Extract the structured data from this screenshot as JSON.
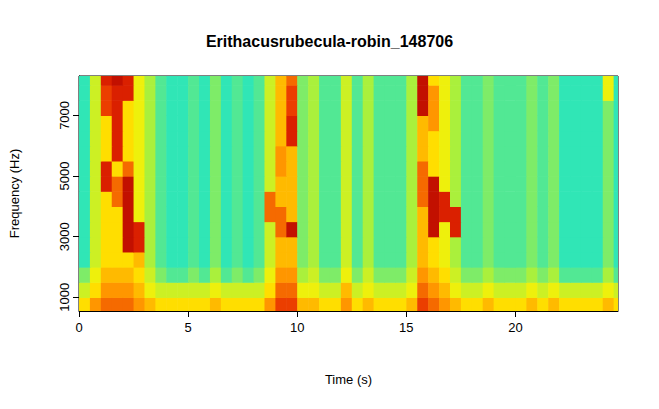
{
  "chart_data": {
    "type": "heatmap",
    "title": "Erithacusrubecula-robin_148706",
    "x_label": "Time (s)",
    "y_label": "Frequency (Hz)",
    "xlim": [
      0,
      24.7
    ],
    "ylim": [
      550,
      8300
    ],
    "xticks": [
      0,
      5,
      10,
      15,
      20
    ],
    "yticks": [
      1000,
      3000,
      5000,
      7000
    ],
    "grid": false,
    "x_edges": [
      0,
      0.5,
      1,
      1.5,
      2,
      2.5,
      3,
      3.5,
      4,
      4.5,
      5,
      5.5,
      6,
      6.5,
      7,
      7.5,
      8,
      8.5,
      9,
      9.5,
      10,
      10.5,
      11,
      11.5,
      12,
      12.5,
      13,
      13.5,
      14,
      14.5,
      15,
      15.5,
      16,
      16.5,
      17,
      17.5,
      18,
      18.5,
      19,
      19.5,
      20,
      20.5,
      21,
      21.5,
      22,
      22.5,
      23,
      23.5,
      24,
      24.5,
      24.7
    ],
    "y_edges": [
      550,
      1000,
      1500,
      2000,
      2500,
      3000,
      3500,
      4000,
      4500,
      5000,
      5500,
      6000,
      6500,
      7000,
      7500,
      8000,
      8300
    ],
    "color_range": [
      0,
      10
    ],
    "cells": [
      [
        6.5,
        7.5,
        8,
        8,
        8,
        7.5,
        7,
        6.5,
        6.5,
        6.5,
        6.5,
        6.5,
        7,
        6.5,
        6.5,
        6.5,
        6.5,
        7.5,
        8.5,
        8.5,
        7,
        7,
        6.5,
        6.5,
        7.5,
        6.5,
        7,
        6.5,
        6.5,
        6.5,
        7,
        8.5,
        8,
        7.5,
        7,
        6.5,
        6.5,
        7,
        6.5,
        6.5,
        6.5,
        7,
        6.5,
        7,
        6.5,
        6.5,
        6.5,
        6.5,
        7,
        6.5
      ],
      [
        5.5,
        6.5,
        7.5,
        7.5,
        7.5,
        7,
        6,
        5.5,
        5.5,
        5.5,
        5.5,
        5.5,
        6,
        5.5,
        5.5,
        5.5,
        5.5,
        6.5,
        8,
        8,
        6,
        6,
        5.5,
        5.5,
        7,
        5.5,
        6,
        5.5,
        5.5,
        5.5,
        6,
        8,
        7.5,
        7,
        6,
        5.5,
        5.5,
        6,
        5.5,
        5.5,
        5.5,
        6,
        5.5,
        6,
        5.5,
        5.5,
        5.5,
        5.5,
        6,
        5.5
      ],
      [
        4.5,
        6,
        7,
        7,
        7,
        6.5,
        5.5,
        4.5,
        4,
        4,
        4.5,
        4,
        5,
        4,
        4.5,
        4,
        4.5,
        6,
        7.5,
        7.5,
        5,
        5.5,
        4.5,
        4.5,
        6,
        4.5,
        5.5,
        4.5,
        4.5,
        4.5,
        5.5,
        7.5,
        7,
        6.5,
        5.5,
        4.5,
        4.5,
        5,
        4.5,
        4.5,
        4.5,
        5,
        4.5,
        5,
        4,
        4,
        4,
        4,
        5,
        4
      ],
      [
        3.5,
        5.5,
        6.5,
        6.5,
        6.5,
        7,
        5,
        4,
        3.5,
        3.5,
        4,
        3.5,
        4.5,
        3.5,
        4,
        3.5,
        4,
        5.5,
        7,
        7,
        4.5,
        5,
        4,
        4,
        5.5,
        4,
        5,
        4,
        4,
        4,
        5,
        7,
        6.5,
        6,
        5,
        4,
        4,
        4.5,
        4,
        4,
        4,
        4.5,
        4,
        4.5,
        3.5,
        3.5,
        3.5,
        3.5,
        4.5,
        3.5
      ],
      [
        3.5,
        5.5,
        6.5,
        6.5,
        9.5,
        9,
        5,
        4,
        3.5,
        3.5,
        4,
        3.5,
        4.5,
        3.5,
        4,
        3.5,
        4,
        5.5,
        7,
        7,
        4.5,
        5,
        4,
        4,
        5.5,
        4,
        5,
        4,
        4,
        4,
        5,
        7,
        6.5,
        6,
        5,
        4,
        4,
        4.5,
        4,
        4,
        4,
        4.5,
        4,
        4.5,
        3.5,
        3.5,
        3.5,
        3.5,
        4.5,
        3.5
      ],
      [
        3.5,
        5.5,
        6.5,
        6.5,
        9.5,
        9,
        5,
        4,
        3.5,
        3.5,
        4,
        3.5,
        4.5,
        3.5,
        4,
        3.5,
        4,
        5.5,
        8,
        9.5,
        4.5,
        5,
        4,
        4,
        5.5,
        4,
        5,
        4,
        4,
        4,
        5,
        7,
        9.5,
        6,
        9,
        4,
        4,
        4.5,
        4,
        4,
        4,
        4.5,
        4,
        4.5,
        3.5,
        3.5,
        3.5,
        3.5,
        4.5,
        3.5
      ],
      [
        3.5,
        5.5,
        6.5,
        6.5,
        9.5,
        6,
        5,
        4,
        3.5,
        3.5,
        4,
        3.5,
        4.5,
        3.5,
        4,
        3.5,
        4,
        8,
        8,
        7,
        4.5,
        5,
        4,
        4,
        5.5,
        4,
        5,
        4,
        4,
        4,
        5,
        7,
        9.5,
        9,
        9,
        4,
        4,
        4.5,
        4,
        4,
        4,
        4.5,
        4,
        4.5,
        3.5,
        3.5,
        3.5,
        3.5,
        4.5,
        3.5
      ],
      [
        3.5,
        5.5,
        6.5,
        8,
        9.5,
        6,
        5,
        4,
        3.5,
        3.5,
        4,
        3.5,
        4.5,
        3.5,
        4,
        3.5,
        4,
        8,
        7,
        7,
        4.5,
        5,
        4,
        4,
        5.5,
        4,
        5,
        4,
        4,
        4,
        5,
        8,
        9.5,
        9,
        5,
        4,
        4,
        4.5,
        4,
        4,
        4,
        4.5,
        4,
        4.5,
        3.5,
        3.5,
        3.5,
        3.5,
        4.5,
        3.5
      ],
      [
        3.5,
        5.5,
        9,
        8,
        9.5,
        6,
        5,
        4,
        3.5,
        3.5,
        4,
        3.5,
        4.5,
        3.5,
        4,
        3.5,
        4,
        5.5,
        7,
        7,
        4.5,
        5,
        4,
        4,
        5.5,
        4,
        5,
        4,
        4,
        4,
        5,
        8,
        9.5,
        6,
        5,
        4,
        4,
        4.5,
        4,
        4,
        4,
        4.5,
        4,
        4.5,
        3.5,
        3.5,
        3.5,
        3.5,
        4.5,
        3.5
      ],
      [
        3.5,
        5.5,
        9,
        6.5,
        8,
        6,
        5,
        4,
        3.5,
        3.5,
        4,
        3.5,
        4.5,
        3.5,
        4,
        3.5,
        4,
        5.5,
        7.5,
        7,
        4.5,
        5,
        4,
        4,
        5.5,
        4,
        5,
        4,
        4,
        4,
        5,
        8,
        6.5,
        6,
        5,
        4,
        4,
        4.5,
        4,
        4,
        4,
        4.5,
        4,
        4.5,
        3.5,
        3.5,
        3.5,
        3.5,
        4.5,
        3.5
      ],
      [
        3.5,
        5.5,
        6.5,
        9,
        6.5,
        6,
        5,
        4,
        3.5,
        3.5,
        4,
        3.5,
        4.5,
        3.5,
        4,
        3.5,
        4,
        5.5,
        7.5,
        7,
        4.5,
        5,
        4,
        4,
        5.5,
        4,
        5,
        4,
        4,
        4,
        5,
        7,
        6.5,
        6,
        5,
        4,
        4,
        4.5,
        4,
        4,
        4,
        4.5,
        4,
        4.5,
        3.5,
        3.5,
        3.5,
        3.5,
        4.5,
        3.5
      ],
      [
        3.5,
        5.5,
        6.5,
        9,
        6.5,
        6,
        5,
        4,
        3.5,
        3.5,
        4,
        3.5,
        4.5,
        3.5,
        4,
        3.5,
        4,
        5.5,
        7,
        9,
        4.5,
        5,
        4,
        4,
        5.5,
        4,
        5,
        4,
        4,
        4,
        5,
        7,
        6.5,
        6,
        5,
        4,
        4,
        4.5,
        4,
        4,
        4,
        4.5,
        4,
        4.5,
        3.5,
        3.5,
        3.5,
        3.5,
        4.5,
        3.5
      ],
      [
        3.5,
        5.5,
        6.5,
        9,
        6.5,
        6,
        5,
        4,
        3.5,
        3.5,
        4,
        3.5,
        4.5,
        3.5,
        4,
        3.5,
        4,
        5.5,
        7,
        9,
        4.5,
        5,
        4,
        4,
        5.5,
        4,
        5,
        4,
        4,
        4,
        5,
        7,
        7.5,
        6,
        5,
        4,
        4,
        4.5,
        4,
        4,
        4,
        4.5,
        4,
        4.5,
        3.5,
        3.5,
        3.5,
        3.5,
        4.5,
        3.5
      ],
      [
        3.5,
        5.5,
        8.5,
        9,
        6.5,
        6,
        5,
        4,
        3.5,
        3.5,
        4,
        3.5,
        4.5,
        3.5,
        4,
        3.5,
        4,
        5.5,
        7,
        8.5,
        4.5,
        5,
        4,
        4,
        5.5,
        4,
        5,
        4,
        4,
        4,
        5,
        9.5,
        7.5,
        6,
        5,
        4,
        4,
        4.5,
        4,
        4,
        4,
        4.5,
        4,
        4.5,
        3.5,
        3.5,
        3.5,
        3.5,
        4.5,
        3.5
      ],
      [
        3.5,
        5.5,
        8.5,
        9,
        9,
        6,
        5,
        4,
        3.5,
        3.5,
        4,
        3.5,
        4.5,
        3.5,
        4,
        3.5,
        4,
        5.5,
        7,
        8.5,
        4.5,
        5,
        4,
        4,
        5.5,
        4,
        5,
        4,
        4,
        4,
        5,
        9.5,
        7.5,
        6,
        5,
        4,
        4,
        4.5,
        4,
        4,
        4,
        4.5,
        4,
        4.5,
        3.5,
        3.5,
        3.5,
        3.5,
        6,
        3.5
      ],
      [
        3.5,
        5.5,
        9,
        9.5,
        9,
        6,
        5,
        4,
        3.5,
        3.5,
        4,
        3.5,
        4.5,
        3.5,
        4,
        3.5,
        4,
        5.5,
        7,
        8,
        4.5,
        5,
        4,
        4,
        5.5,
        4,
        5,
        4,
        4,
        4,
        5,
        9.5,
        6.5,
        6,
        5,
        4,
        4,
        4.5,
        4,
        4,
        4,
        4.5,
        4,
        4.5,
        3.5,
        3.5,
        3.5,
        3.5,
        6,
        3.5
      ]
    ]
  }
}
